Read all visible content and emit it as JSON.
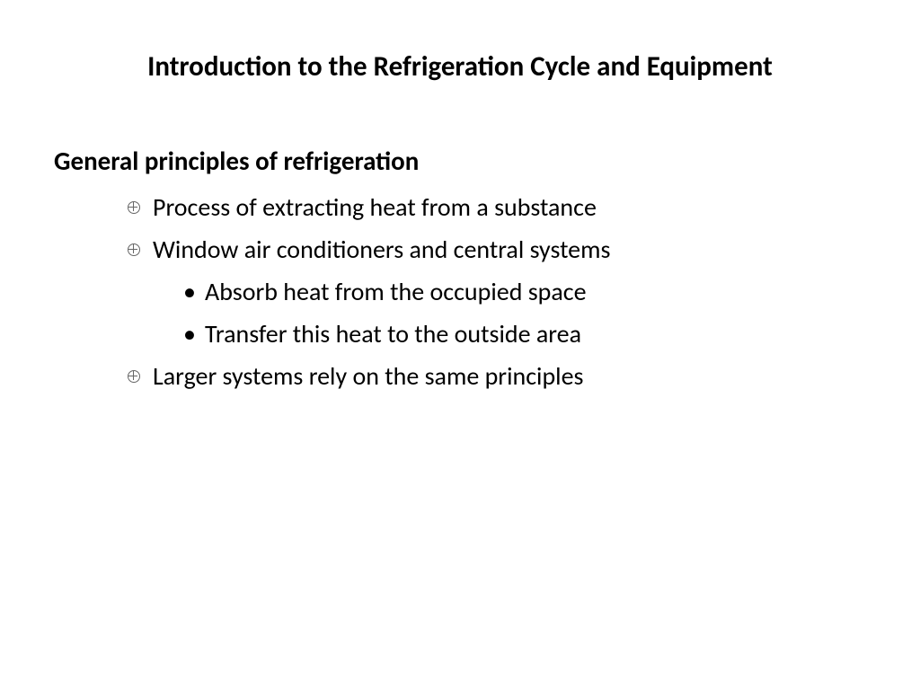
{
  "slide": {
    "title": "Introduction to the Refrigeration Cycle and Equipment",
    "section_heading": "General principles of refrigeration",
    "bullets": {
      "b1": "Process of extracting heat from a substance",
      "b2": "Window air conditioners and central systems",
      "b2_1": "Absorb heat from the occupied space",
      "b2_2": "Transfer this heat to the outside area",
      "b3": "Larger systems rely on the same principles"
    }
  },
  "colors": {
    "background": "#ffffff",
    "text": "#000000"
  },
  "typography": {
    "title_fontsize": 31,
    "heading_fontsize": 29,
    "body_fontsize": 28,
    "font_family": "Calibri"
  }
}
